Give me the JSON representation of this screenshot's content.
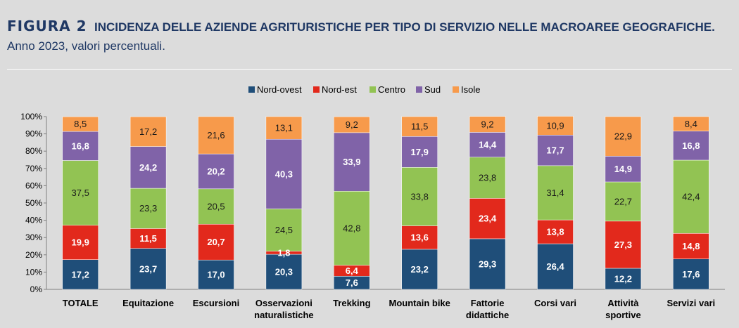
{
  "header": {
    "figure_label": "FIGURA 2",
    "title_bold": "INCIDENZA DELLE AZIENDE AGRITURISTICHE PER TIPO DI SERVIZIO NELLE MACROAREE GEOGRAFICHE.",
    "title_normal": "Anno 2023, valori percentuali."
  },
  "chart_data": {
    "type": "bar",
    "stacked": true,
    "percent_stacked": true,
    "categories": [
      [
        "TOTALE"
      ],
      [
        "Equitazione"
      ],
      [
        "Escursioni"
      ],
      [
        "Osservazioni",
        "naturalistiche"
      ],
      [
        "Trekking"
      ],
      [
        "Mountain bike"
      ],
      [
        "Fattorie",
        "didattiche"
      ],
      [
        "Corsi vari"
      ],
      [
        "Attività",
        "sportive"
      ],
      [
        "Servizi vari"
      ]
    ],
    "series": [
      {
        "name": "Nord-ovest",
        "color": "#1f4e79",
        "label_color": "#ffffff",
        "values": [
          17.2,
          23.7,
          17.0,
          20.3,
          7.6,
          23.2,
          29.3,
          26.4,
          12.2,
          17.6
        ],
        "labels": [
          "17,2",
          "23,7",
          "17,0",
          "20,3",
          "7,6",
          "23,2",
          "29,3",
          "26,4",
          "12,2",
          "17,6"
        ]
      },
      {
        "name": "Nord-est",
        "color": "#e2291c",
        "label_color": "#ffffff",
        "values": [
          19.9,
          11.5,
          20.7,
          1.8,
          6.4,
          13.6,
          23.4,
          13.8,
          27.3,
          14.8
        ],
        "labels": [
          "19,9",
          "11,5",
          "20,7",
          "1,8",
          "6,4",
          "13,6",
          "23,4",
          "13,8",
          "27,3",
          "14,8"
        ]
      },
      {
        "name": "Centro",
        "color": "#92c353",
        "label_color": "#1a1a1a",
        "values": [
          37.5,
          23.3,
          20.5,
          24.5,
          42.8,
          33.8,
          23.8,
          31.4,
          22.7,
          42.4
        ],
        "labels": [
          "37,5",
          "23,3",
          "20,5",
          "24,5",
          "42,8",
          "33,8",
          "23,8",
          "31,4",
          "22,7",
          "42,4"
        ]
      },
      {
        "name": "Sud",
        "color": "#8063a8",
        "label_color": "#ffffff",
        "values": [
          16.8,
          24.2,
          20.2,
          40.3,
          33.9,
          17.9,
          14.4,
          17.7,
          14.9,
          16.8
        ],
        "labels": [
          "16,8",
          "24,2",
          "20,2",
          "40,3",
          "33,9",
          "17,9",
          "14,4",
          "17,7",
          "14,9",
          "16,8"
        ]
      },
      {
        "name": "Isole",
        "color": "#f79a4b",
        "label_color": "#1a1a1a",
        "values": [
          8.5,
          17.2,
          21.6,
          13.1,
          9.2,
          11.5,
          9.2,
          10.9,
          22.9,
          8.4
        ],
        "labels": [
          "8,5",
          "17,2",
          "21,6",
          "13,1",
          "9,2",
          "11,5",
          "9,2",
          "10,9",
          "22,9",
          "8,4"
        ]
      }
    ],
    "y_ticks": [
      "0%",
      "10%",
      "20%",
      "30%",
      "40%",
      "50%",
      "60%",
      "70%",
      "80%",
      "90%",
      "100%"
    ],
    "ylim": [
      0,
      100
    ],
    "grid": false,
    "legend_position": "top-center"
  }
}
